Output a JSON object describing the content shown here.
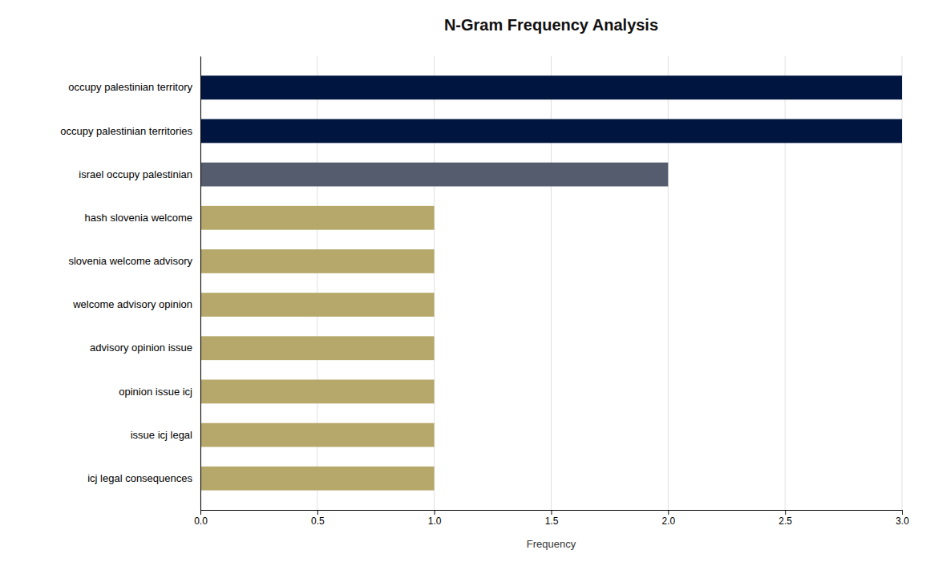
{
  "chart_data": {
    "type": "bar",
    "orientation": "horizontal",
    "title": "N-Gram Frequency Analysis",
    "categories": [
      "icj legal consequences",
      "issue icj legal",
      "opinion issue icj",
      "advisory opinion issue",
      "welcome advisory opinion",
      "slovenia welcome advisory",
      "hash slovenia welcome",
      "israel occupy palestinian",
      "occupy palestinian territories",
      "occupy palestinian territory"
    ],
    "values": [
      1,
      1,
      1,
      1,
      1,
      1,
      1,
      2,
      3,
      3
    ],
    "colors": [
      "#b5a86a",
      "#b5a86a",
      "#b5a86a",
      "#b5a86a",
      "#b5a86a",
      "#b5a86a",
      "#b5a86a",
      "#555c6e",
      "#001540",
      "#001540"
    ],
    "xlabel": "Frequency",
    "xlim": [
      0,
      3.0
    ],
    "xticks": [
      {
        "value": 0.0,
        "label": "0.0"
      },
      0.5,
      {
        "value": 1.0,
        "label": "1.0"
      },
      1.5,
      {
        "value": 2.0,
        "label": "2.0"
      },
      2.5,
      {
        "value": 3.0,
        "label": "3.0"
      }
    ],
    "grid": true
  }
}
